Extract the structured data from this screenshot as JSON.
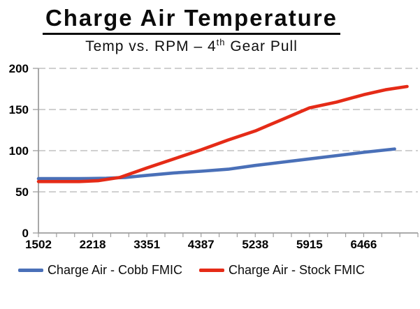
{
  "header": {
    "title": "Charge Air Temperature",
    "subtitle": {
      "pre": "Temp vs. RPM – 4",
      "sup": "th",
      "post": " Gear Pull"
    }
  },
  "chart_data": {
    "type": "line",
    "title": "Charge Air Temperature",
    "subtitle": "Temp vs. RPM – 4th Gear Pull",
    "x_tick_labels": [
      "1502",
      "2218",
      "3351",
      "4387",
      "5238",
      "5915",
      "6466"
    ],
    "x_total_ticks": 22,
    "minor_ticks_per_label": 3,
    "ylim": [
      0,
      200
    ],
    "yticks": [
      0,
      50,
      100,
      150,
      200
    ],
    "grid": "horizontal-dashed",
    "legend_position": "bottom",
    "series": [
      {
        "name": "Charge Air - Cobb FMIC",
        "color": "#4a70b8",
        "points": [
          [
            0,
            66
          ],
          [
            0.75,
            66
          ],
          [
            1.25,
            66.5
          ],
          [
            1.6,
            67.5
          ],
          [
            2,
            70
          ],
          [
            2.5,
            73
          ],
          [
            3,
            75
          ],
          [
            3.5,
            77.5
          ],
          [
            4,
            82
          ],
          [
            4.5,
            86
          ],
          [
            5,
            90
          ],
          [
            5.5,
            94
          ],
          [
            6,
            98
          ],
          [
            6.57,
            102
          ]
        ]
      },
      {
        "name": "Charge Air - Stock FMIC",
        "color": "#e52b17",
        "points": [
          [
            0,
            62.5
          ],
          [
            0.75,
            62.5
          ],
          [
            1.1,
            63.5
          ],
          [
            1.5,
            67.5
          ],
          [
            2,
            79
          ],
          [
            2.5,
            90
          ],
          [
            3,
            101
          ],
          [
            3.5,
            113
          ],
          [
            4,
            124
          ],
          [
            4.5,
            138
          ],
          [
            5,
            152
          ],
          [
            5.5,
            159
          ],
          [
            6,
            168
          ],
          [
            6.4,
            174
          ],
          [
            6.8,
            178
          ]
        ]
      }
    ]
  },
  "legend": {
    "items": [
      {
        "label": "Charge Air - Cobb FMIC",
        "color": "#4a70b8"
      },
      {
        "label": "Charge Air - Stock FMIC",
        "color": "#e52b17"
      }
    ]
  },
  "colors": {
    "background": "#ffffff",
    "grid": "#b5b5b5",
    "axis": "#9e9e9e",
    "text": "#000000"
  }
}
